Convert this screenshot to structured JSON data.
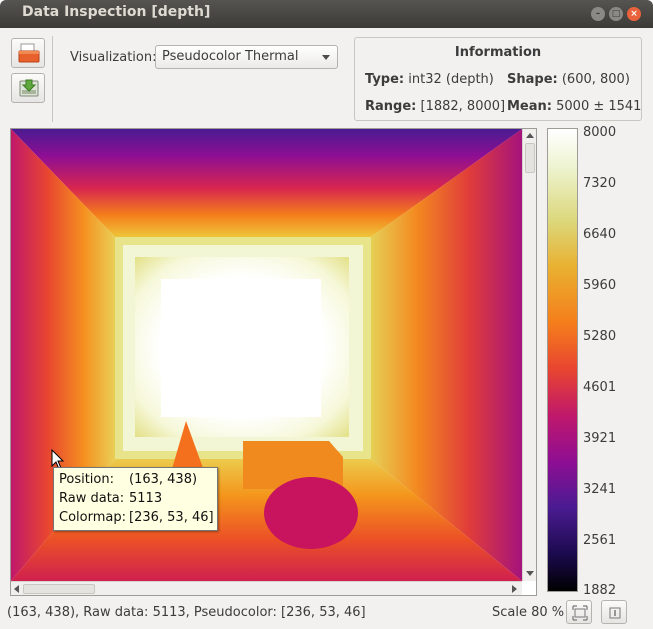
{
  "window": {
    "title": "Data Inspection [depth]"
  },
  "toolbar": {
    "visualization_label": "Visualization:",
    "visualization_value": "Pseudocolor Thermal"
  },
  "info": {
    "title": "Information",
    "type_label": "Type:",
    "type_value": "int32 (depth)",
    "shape_label": "Shape:",
    "shape_value": "(600, 800)",
    "range_label": "Range:",
    "range_value": "[1882, 8000]",
    "mean_label": "Mean:",
    "mean_value": "5000 ± 1541"
  },
  "tooltip": {
    "position_label": "Position:",
    "position_value": "(163, 438)",
    "raw_label": "Raw data:",
    "raw_value": "5113",
    "colormap_label": "Colormap:",
    "colormap_value": "[236, 53, 46]"
  },
  "colorbar": {
    "ticks": [
      "8000",
      "7320",
      "6640",
      "5960",
      "5280",
      "4601",
      "3921",
      "3241",
      "2561",
      "1882"
    ]
  },
  "status": {
    "text": "(163, 438), Raw data: 5113, Pseudocolor: [236, 53, 46]",
    "scale": "Scale 80 %"
  },
  "colors": {
    "close": "#e9623b",
    "titlebar": "#3c3b37",
    "tooltip_bg": "#ffffe1"
  },
  "icons": [
    "open-file-icon",
    "save-download-icon",
    "zoom-fit-icon",
    "zoom-reset-icon",
    "mouse-cursor-icon"
  ]
}
